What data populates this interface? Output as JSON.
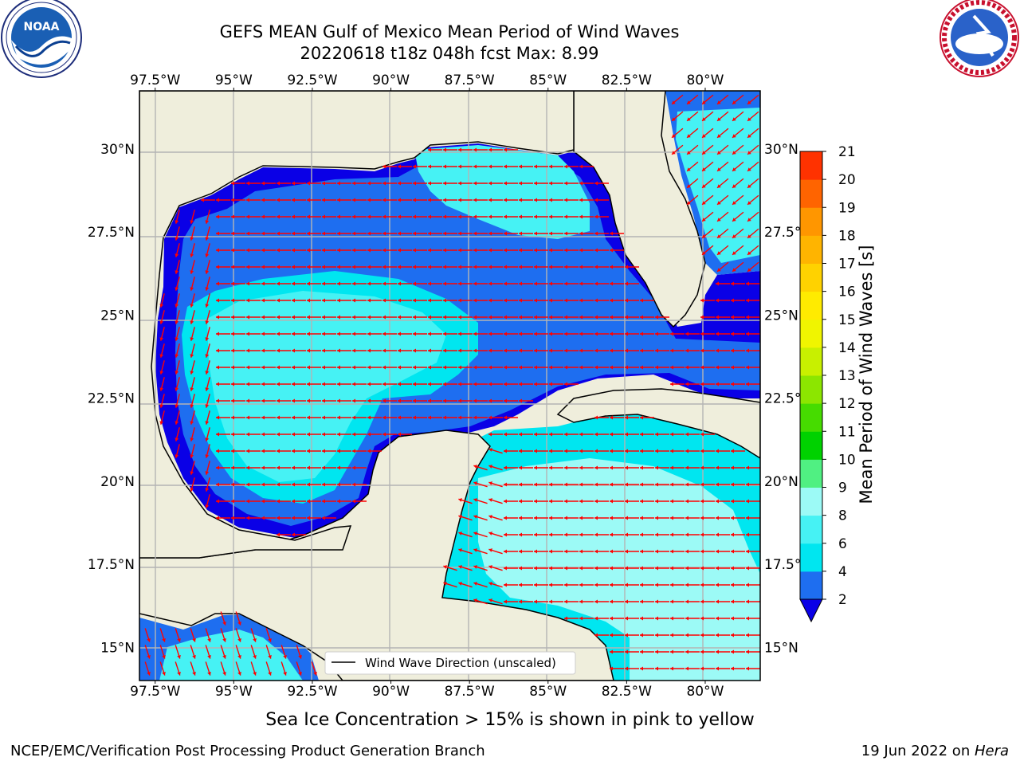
{
  "title": {
    "line1": "GEFS MEAN Gulf of Mexico Mean Period of Wind Waves",
    "line2": "20220618 t18z 048h fcst   Max: 8.99"
  },
  "logos": {
    "left": {
      "name": "noaa-logo",
      "text": "NOAA",
      "ring_text": "NATIONAL OCEANIC AND ATMOSPHERIC ADMINISTRATION · U.S. DEPARTMENT OF COMMERCE"
    },
    "right": {
      "name": "nws-logo",
      "ring_text": "NATIONAL WEATHER SERVICE"
    }
  },
  "map": {
    "lon_ticks": [
      "97.5°W",
      "95°W",
      "92.5°W",
      "90°W",
      "87.5°W",
      "85°W",
      "82.5°W",
      "80°W"
    ],
    "lon_values": [
      -97.5,
      -95,
      -92.5,
      -90,
      -87.5,
      -85,
      -82.5,
      -80
    ],
    "lat_ticks_left": [
      "30°N",
      "27.5°N",
      "25°N",
      "22.5°N",
      "20°N",
      "17.5°N",
      "15°N"
    ],
    "lat_ticks_right": [
      "30°N",
      "27.5°N",
      "25°N",
      "22.5°N",
      "20°N",
      "17.5°N",
      "15°N"
    ],
    "lat_values": [
      30,
      27.5,
      25,
      22.5,
      20,
      17.5,
      15
    ],
    "extent": {
      "lon": [
        -98,
        -78.25
      ],
      "lat": [
        14,
        31.75
      ]
    },
    "legend": "Wind Wave Direction (unscaled)",
    "colors": {
      "land": "#efeedc",
      "level_2_4": "#1e6ef0",
      "level_below_2": "#0a00e6",
      "level_4_6": "#00e6f0",
      "level_6_8": "#46f2f4",
      "level_8_9": "#9cfaf6",
      "arrow": "#ff0000",
      "grid": "#b4b4b4"
    }
  },
  "colorbar": {
    "label": "Mean Period of Wind Waves [s]",
    "ticks": [
      "2",
      "4",
      "6",
      "8",
      "9",
      "10",
      "11",
      "12",
      "13",
      "14",
      "15",
      "16",
      "17",
      "18",
      "19",
      "20",
      "21"
    ],
    "colors": [
      "#1e6ef0",
      "#00e6f0",
      "#46f2f4",
      "#9cfaf6",
      "#50f082",
      "#00d200",
      "#46dc00",
      "#8ce600",
      "#c8f000",
      "#f0f500",
      "#ffeb00",
      "#ffd200",
      "#ffb400",
      "#ff9600",
      "#ff6400",
      "#ff3200",
      "#ff0000"
    ],
    "extend_color": "#0a00e6"
  },
  "footnote": "Sea Ice Concentration > 15% is shown in pink to yellow",
  "credit_left": "NCEP/EMC/Verification Post Processing Product Generation Branch",
  "credit_right": {
    "date": "19 Jun 2022 on ",
    "host": "Hera"
  }
}
